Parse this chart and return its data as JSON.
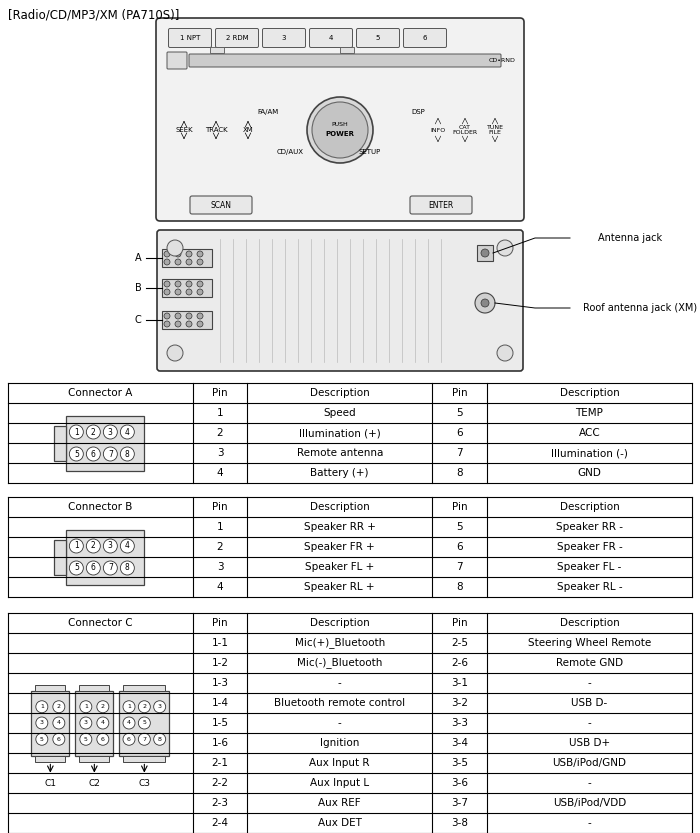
{
  "title": "[Radio/CD/MP3/XM (PA710S)]",
  "conn_a_header": [
    "Connector A",
    "Pin",
    "Description",
    "Pin",
    "Description"
  ],
  "conn_a_rows": [
    [
      "1",
      "Speed",
      "5",
      "TEMP"
    ],
    [
      "2",
      "Illumination (+)",
      "6",
      "ACC"
    ],
    [
      "3",
      "Remote antenna",
      "7",
      "Illumination (-)"
    ],
    [
      "4",
      "Battery (+)",
      "8",
      "GND"
    ]
  ],
  "conn_b_header": [
    "Connector B",
    "Pin",
    "Description",
    "Pin",
    "Description"
  ],
  "conn_b_rows": [
    [
      "1",
      "Speaker RR +",
      "5",
      "Speaker RR -"
    ],
    [
      "2",
      "Speaker FR +",
      "6",
      "Speaker FR -"
    ],
    [
      "3",
      "Speaker FL +",
      "7",
      "Speaker FL -"
    ],
    [
      "4",
      "Speaker RL +",
      "8",
      "Speaker RL -"
    ]
  ],
  "conn_c_header": [
    "Connector C",
    "Pin",
    "Description",
    "Pin",
    "Description"
  ],
  "conn_c_rows": [
    [
      "1-1",
      "Mic(+)_Bluetooth",
      "2-5",
      "Steering Wheel Remote"
    ],
    [
      "1-2",
      "Mic(-)_Bluetooth",
      "2-6",
      "Remote GND"
    ],
    [
      "1-3",
      "-",
      "3-1",
      "-"
    ],
    [
      "1-4",
      "Bluetooth remote control",
      "3-2",
      "USB D-"
    ],
    [
      "1-5",
      "-",
      "3-3",
      "-"
    ],
    [
      "1-6",
      "Ignition",
      "3-4",
      "USB D+"
    ],
    [
      "2-1",
      "Aux Input R",
      "3-5",
      "USB/iPod/GND"
    ],
    [
      "2-2",
      "Aux Input L",
      "3-6",
      "-"
    ],
    [
      "2-3",
      "Aux REF",
      "3-7",
      "USB/iPod/VDD"
    ],
    [
      "2-4",
      "Aux DET",
      "3-8",
      "-"
    ]
  ],
  "antenna_label": "Antenna jack",
  "roof_antenna_label": "Roof antenna jack (XM)",
  "bg_color": "#ffffff"
}
